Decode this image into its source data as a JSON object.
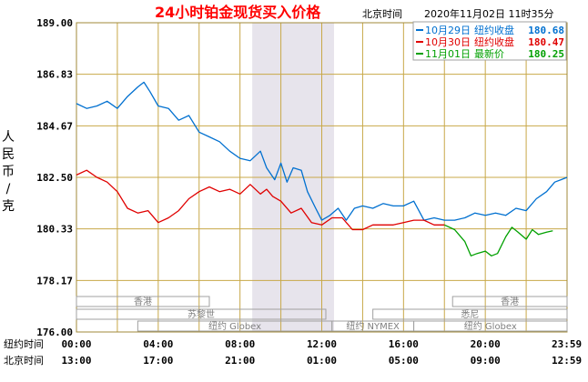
{
  "header": {
    "title": "24小时铂金现货买入价格",
    "timezone": "北京时间",
    "timestamp": "2020年11月02日 11时35分"
  },
  "axis": {
    "ylabel_chars": [
      "人",
      "民",
      "币",
      "/",
      "克"
    ],
    "row1_label": "纽约时间",
    "row2_label": "北京时间"
  },
  "markets": {
    "hongkong": "香港",
    "paris": "苏黎世",
    "ny_globex": "纽约 Globex",
    "ny_nymex": "纽约 NYMEX",
    "sydney": "悉尼"
  },
  "legend": [
    {
      "label": "10月29日",
      "desc": "纽约收盘",
      "value": "180.68",
      "color": "#0070d0"
    },
    {
      "label": "10月30日",
      "desc": "纽约收盘",
      "value": "180.47",
      "color": "#e00000"
    },
    {
      "label": "11月01日",
      "desc": "最新价",
      "value": "180.25",
      "color": "#00a000"
    }
  ],
  "chart_data": {
    "type": "line",
    "title": "24小时铂金现货买入价格",
    "ylabel": "人民币/克",
    "ylim": [
      176.0,
      189.0
    ],
    "yticks": [
      "189.00",
      "186.83",
      "184.67",
      "182.50",
      "180.33",
      "178.17",
      "176.00"
    ],
    "xlim": [
      0,
      24
    ],
    "xticks_ny": [
      "00:00",
      "04:00",
      "08:00",
      "12:00",
      "16:00",
      "20:00",
      "23:59"
    ],
    "xticks_bj": [
      "13:00",
      "17:00",
      "21:00",
      "01:00",
      "05:00",
      "09:00",
      "12:59"
    ],
    "grid": true,
    "legend_position": "top-right",
    "series": [
      {
        "name": "10月29日",
        "color": "#0070d0",
        "points": [
          [
            0,
            185.6
          ],
          [
            0.5,
            185.4
          ],
          [
            1,
            185.5
          ],
          [
            1.5,
            185.7
          ],
          [
            2,
            185.4
          ],
          [
            2.5,
            185.9
          ],
          [
            3,
            186.3
          ],
          [
            3.3,
            186.5
          ],
          [
            3.6,
            186.1
          ],
          [
            4,
            185.5
          ],
          [
            4.5,
            185.4
          ],
          [
            5,
            184.9
          ],
          [
            5.5,
            185.1
          ],
          [
            6,
            184.4
          ],
          [
            6.5,
            184.2
          ],
          [
            7,
            184.0
          ],
          [
            7.5,
            183.6
          ],
          [
            8,
            183.3
          ],
          [
            8.5,
            183.2
          ],
          [
            9,
            183.6
          ],
          [
            9.3,
            182.9
          ],
          [
            9.7,
            182.4
          ],
          [
            10,
            183.1
          ],
          [
            10.3,
            182.3
          ],
          [
            10.6,
            182.9
          ],
          [
            11,
            182.8
          ],
          [
            11.3,
            181.9
          ],
          [
            11.7,
            181.2
          ],
          [
            12,
            180.7
          ],
          [
            12.4,
            180.9
          ],
          [
            12.8,
            181.2
          ],
          [
            13.2,
            180.7
          ],
          [
            13.6,
            181.2
          ],
          [
            14,
            181.3
          ],
          [
            14.5,
            181.2
          ],
          [
            15,
            181.4
          ],
          [
            15.5,
            181.3
          ],
          [
            16,
            181.3
          ],
          [
            16.5,
            181.5
          ],
          [
            17,
            180.7
          ],
          [
            17.5,
            180.8
          ],
          [
            18,
            180.7
          ],
          [
            18.5,
            180.7
          ],
          [
            19,
            180.8
          ],
          [
            19.5,
            181.0
          ],
          [
            20,
            180.9
          ],
          [
            20.5,
            181.0
          ],
          [
            21,
            180.9
          ],
          [
            21.5,
            181.2
          ],
          [
            22,
            181.1
          ],
          [
            22.5,
            181.6
          ],
          [
            23,
            181.9
          ],
          [
            23.4,
            182.3
          ],
          [
            23.7,
            182.4
          ],
          [
            24,
            182.5
          ]
        ]
      },
      {
        "name": "10月30日",
        "color": "#e00000",
        "points": [
          [
            0,
            182.6
          ],
          [
            0.5,
            182.8
          ],
          [
            1,
            182.5
          ],
          [
            1.5,
            182.3
          ],
          [
            2,
            181.9
          ],
          [
            2.5,
            181.2
          ],
          [
            3,
            181.0
          ],
          [
            3.5,
            181.1
          ],
          [
            4,
            180.6
          ],
          [
            4.5,
            180.8
          ],
          [
            5,
            181.1
          ],
          [
            5.5,
            181.6
          ],
          [
            6,
            181.9
          ],
          [
            6.5,
            182.1
          ],
          [
            7,
            181.9
          ],
          [
            7.5,
            182.0
          ],
          [
            8,
            181.8
          ],
          [
            8.5,
            182.2
          ],
          [
            9,
            181.8
          ],
          [
            9.3,
            182.0
          ],
          [
            9.6,
            181.7
          ],
          [
            10,
            181.5
          ],
          [
            10.5,
            181.0
          ],
          [
            11,
            181.2
          ],
          [
            11.5,
            180.6
          ],
          [
            12,
            180.5
          ],
          [
            12.5,
            180.8
          ],
          [
            13,
            180.8
          ],
          [
            13.5,
            180.3
          ],
          [
            14,
            180.3
          ],
          [
            14.5,
            180.5
          ],
          [
            15,
            180.5
          ],
          [
            15.5,
            180.5
          ],
          [
            16,
            180.6
          ],
          [
            16.5,
            180.7
          ],
          [
            17,
            180.7
          ],
          [
            17.5,
            180.5
          ],
          [
            18,
            180.5
          ]
        ]
      },
      {
        "name": "11月01日",
        "color": "#00a000",
        "points": [
          [
            18,
            180.5
          ],
          [
            18.5,
            180.3
          ],
          [
            19,
            179.8
          ],
          [
            19.3,
            179.2
          ],
          [
            19.6,
            179.3
          ],
          [
            20,
            179.4
          ],
          [
            20.3,
            179.2
          ],
          [
            20.6,
            179.3
          ],
          [
            21,
            180.0
          ],
          [
            21.3,
            180.4
          ],
          [
            21.6,
            180.2
          ],
          [
            22,
            179.9
          ],
          [
            22.3,
            180.3
          ],
          [
            22.6,
            180.1
          ],
          [
            23,
            180.2
          ],
          [
            23.3,
            180.25
          ]
        ]
      }
    ]
  }
}
